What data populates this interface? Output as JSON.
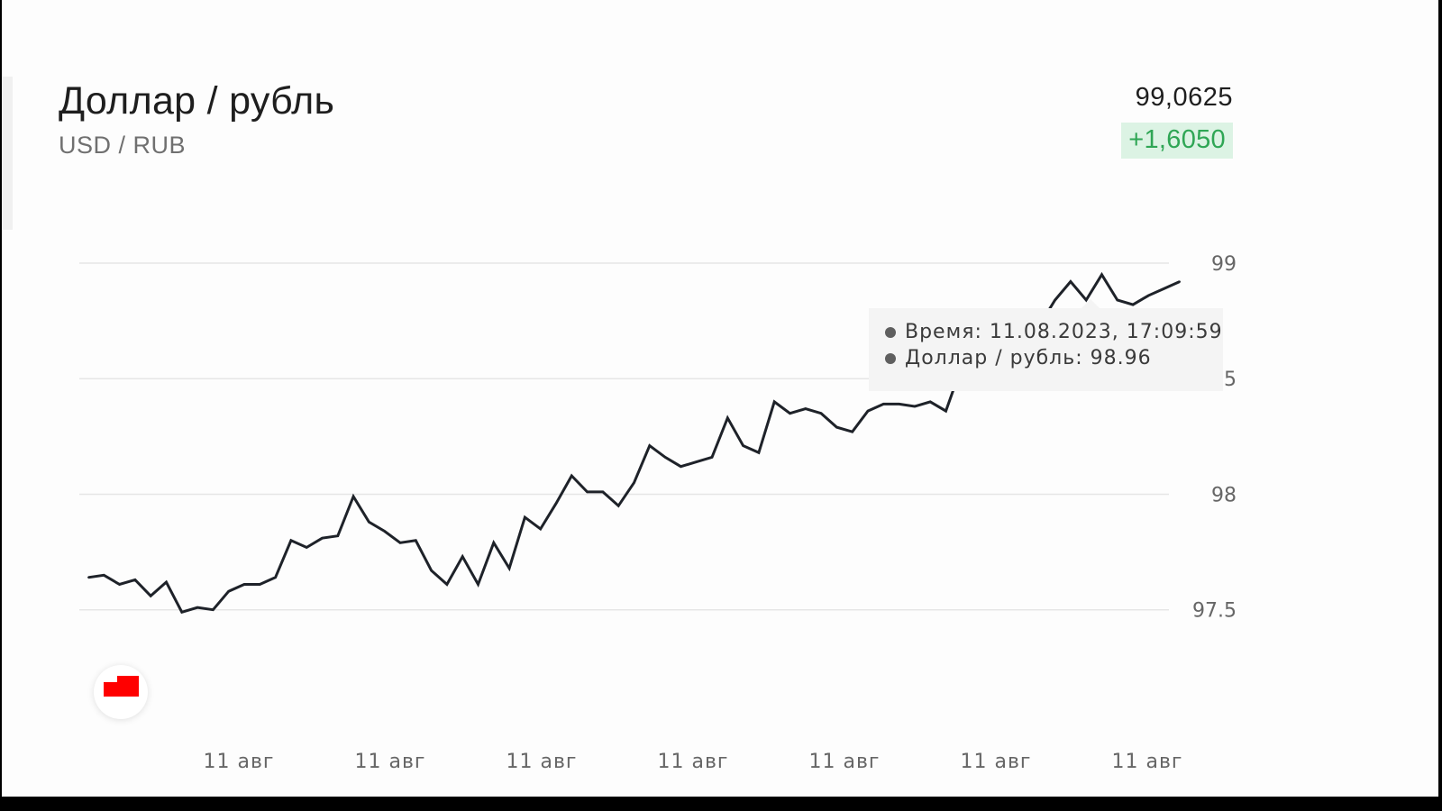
{
  "header": {
    "title": "Доллар / рубль",
    "subtitle": "USD / RUB",
    "price": "99,0625",
    "change": "+1,6050"
  },
  "tooltip": {
    "time_label": "Время",
    "time_value": "11.08.2023, 17:09:59",
    "series_label": "Доллар / рубль",
    "series_value": "98.96"
  },
  "colors": {
    "line": "#1e2229",
    "grid": "#e6e6e6",
    "change_text": "#2fa655",
    "change_bg": "#dcf3e4",
    "badge_flag": "#ff0000"
  },
  "badge": {
    "icon": "red-flag-icon"
  },
  "chart_data": {
    "type": "line",
    "title": "Доллар / рубль",
    "xlabel": "",
    "ylabel": "",
    "y_ticks": [
      "97.5",
      "98",
      "98.5",
      "99"
    ],
    "x_ticks": [
      "11 авг",
      "11 авг",
      "11 авг",
      "11 авг",
      "11 авг",
      "11 авг",
      "11 авг"
    ],
    "ylim": [
      97.0,
      99.3
    ],
    "grid": true,
    "series": [
      {
        "values": [
          97.64,
          97.65,
          97.61,
          97.63,
          97.56,
          97.62,
          97.49,
          97.51,
          97.5,
          97.58,
          97.61,
          97.61,
          97.64,
          97.8,
          97.77,
          97.81,
          97.82,
          97.99,
          97.88,
          97.84,
          97.79,
          97.8,
          97.67,
          97.61,
          97.73,
          97.61,
          97.79,
          97.68,
          97.9,
          97.85,
          97.96,
          98.08,
          98.01,
          98.01,
          97.95,
          98.05,
          98.21,
          98.16,
          98.12,
          98.14,
          98.16,
          98.33,
          98.21,
          98.18,
          98.4,
          98.35,
          98.37,
          98.35,
          98.29,
          98.27,
          98.36,
          98.39,
          98.39,
          98.38,
          98.4,
          98.36,
          98.55,
          98.51,
          98.62,
          98.58,
          98.76,
          98.73,
          98.84,
          98.92,
          98.84,
          98.95,
          98.84,
          98.82,
          98.86,
          98.89,
          98.92
        ]
      }
    ]
  }
}
